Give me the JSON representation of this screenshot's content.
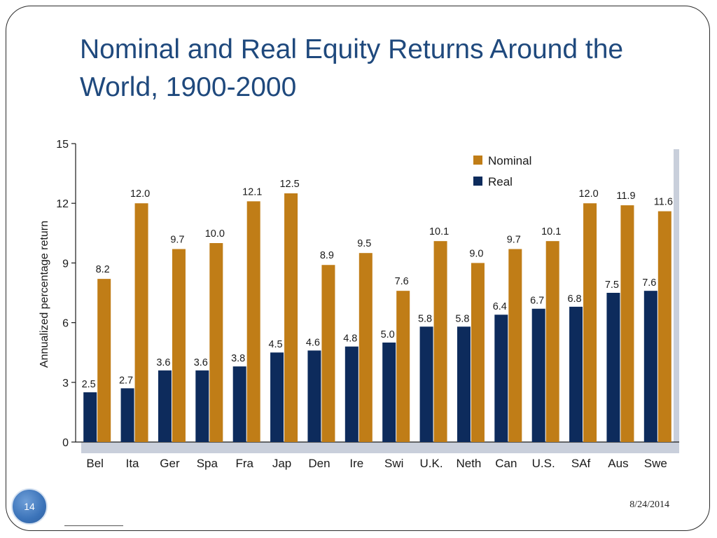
{
  "slide": {
    "title": "Nominal and Real Equity Returns Around the World, 1900-2000",
    "page_number": "14",
    "date": "8/24/2014"
  },
  "colors": {
    "nominal": "#c07d17",
    "real": "#0d2b5c",
    "title": "#1f497d",
    "panel_shadow": "#c9cfdb"
  },
  "chart_data": {
    "type": "bar",
    "title": "",
    "xlabel": "",
    "ylabel": "Annualized percentage return",
    "ylim": [
      0,
      15
    ],
    "yticks": [
      0,
      3,
      6,
      9,
      12,
      15
    ],
    "grid": false,
    "legend_position": "top-right",
    "categories": [
      "Bel",
      "Ita",
      "Ger",
      "Spa",
      "Fra",
      "Jap",
      "Den",
      "Ire",
      "Swi",
      "U.K.",
      "Neth",
      "Can",
      "U.S.",
      "SAf",
      "Aus",
      "Swe"
    ],
    "series": [
      {
        "name": "Real",
        "color": "#0d2b5c",
        "values": [
          2.5,
          2.7,
          3.6,
          3.6,
          3.8,
          4.5,
          4.6,
          4.8,
          5.0,
          5.8,
          5.8,
          6.4,
          6.7,
          6.8,
          7.5,
          7.6
        ],
        "labels": [
          "2.5",
          "2.7",
          "3.6",
          "3.6",
          "3.8",
          "4.5",
          "4.6",
          "4.8",
          "5.0",
          "5.8",
          "5.8",
          "6.4",
          "6.7",
          "6.8",
          "7.5",
          "7.6"
        ]
      },
      {
        "name": "Nominal",
        "color": "#c07d17",
        "values": [
          8.2,
          12.0,
          9.7,
          10.0,
          12.1,
          12.5,
          8.9,
          9.5,
          7.6,
          10.1,
          9.0,
          9.7,
          10.1,
          12.0,
          11.9,
          11.6
        ],
        "labels": [
          "8.2",
          "12.0",
          "9.7",
          "10.0",
          "12.1",
          "12.5",
          "8.9",
          "9.5",
          "7.6",
          "10.1",
          "9.0",
          "9.7",
          "10.1",
          "12.0",
          "11.9",
          "11.6"
        ]
      }
    ],
    "legend": [
      "Nominal",
      "Real"
    ]
  }
}
